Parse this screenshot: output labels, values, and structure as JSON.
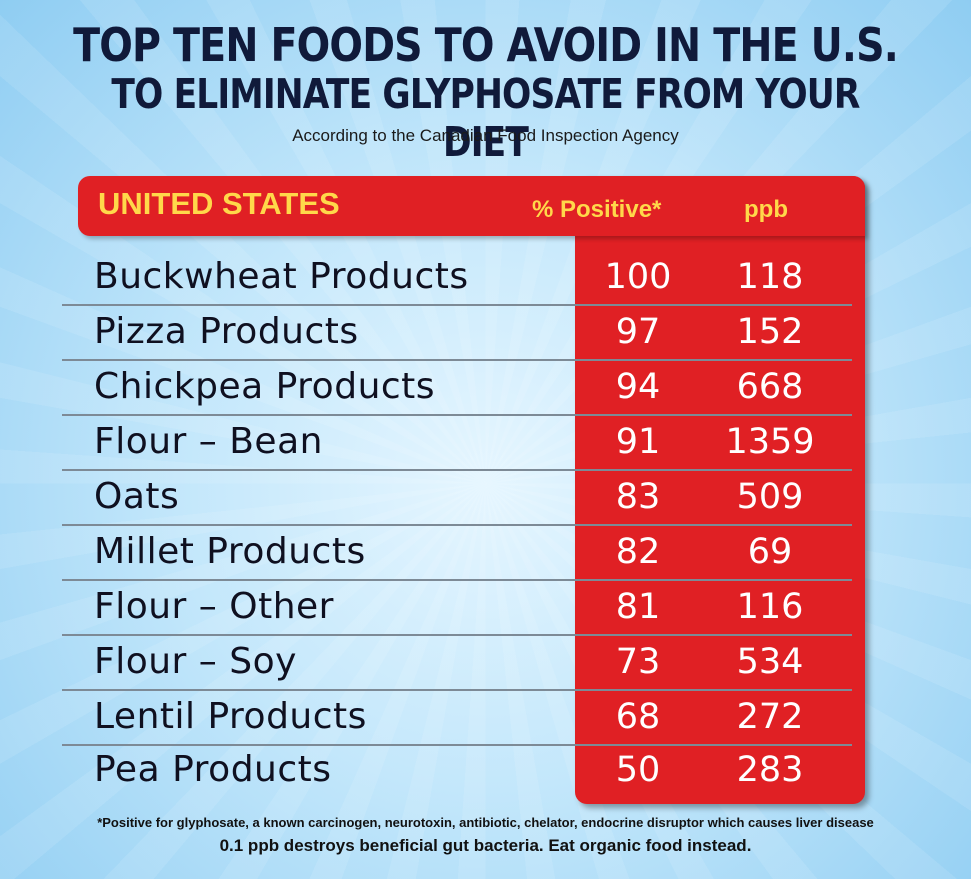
{
  "header": {
    "title_line1": "TOP TEN FOODS TO AVOID IN THE U.S.",
    "title_line2": "TO ELIMINATE GLYPHOSATE FROM YOUR DIET",
    "subtitle": "According to the Canadian Food Inspection Agency"
  },
  "table": {
    "country_label": "UNITED STATES",
    "col_pct_label": "% Positive*",
    "col_ppb_label": "ppb",
    "rows": [
      {
        "food": "Buckwheat Products",
        "pct": "100",
        "ppb": "118"
      },
      {
        "food": "Pizza Products",
        "pct": "97",
        "ppb": "152"
      },
      {
        "food": "Chickpea Products",
        "pct": "94",
        "ppb": "668"
      },
      {
        "food": "Flour – Bean",
        "pct": "91",
        "ppb": "1359"
      },
      {
        "food": "Oats",
        "pct": "83",
        "ppb": "509"
      },
      {
        "food": "Millet Products",
        "pct": "82",
        "ppb": "69"
      },
      {
        "food": "Flour – Other",
        "pct": "81",
        "ppb": "116"
      },
      {
        "food": "Flour – Soy",
        "pct": "73",
        "ppb": "534"
      },
      {
        "food": "Lentil Products",
        "pct": "68",
        "ppb": "272"
      },
      {
        "food": "Pea Products",
        "pct": "50",
        "ppb": "283"
      }
    ]
  },
  "footer": {
    "note_line1": "*Positive for glyphosate, a known carcinogen, neurotoxin, antibiotic, chelator, endocrine disruptor which causes liver disease",
    "note_line2": "0.1 ppb destroys beneficial gut bacteria. Eat organic food instead."
  },
  "colors": {
    "panel_red": "#e02024",
    "header_yellow": "#ffd84a",
    "title_navy": "#101a3a",
    "background_blue": "#c3e7fb"
  }
}
